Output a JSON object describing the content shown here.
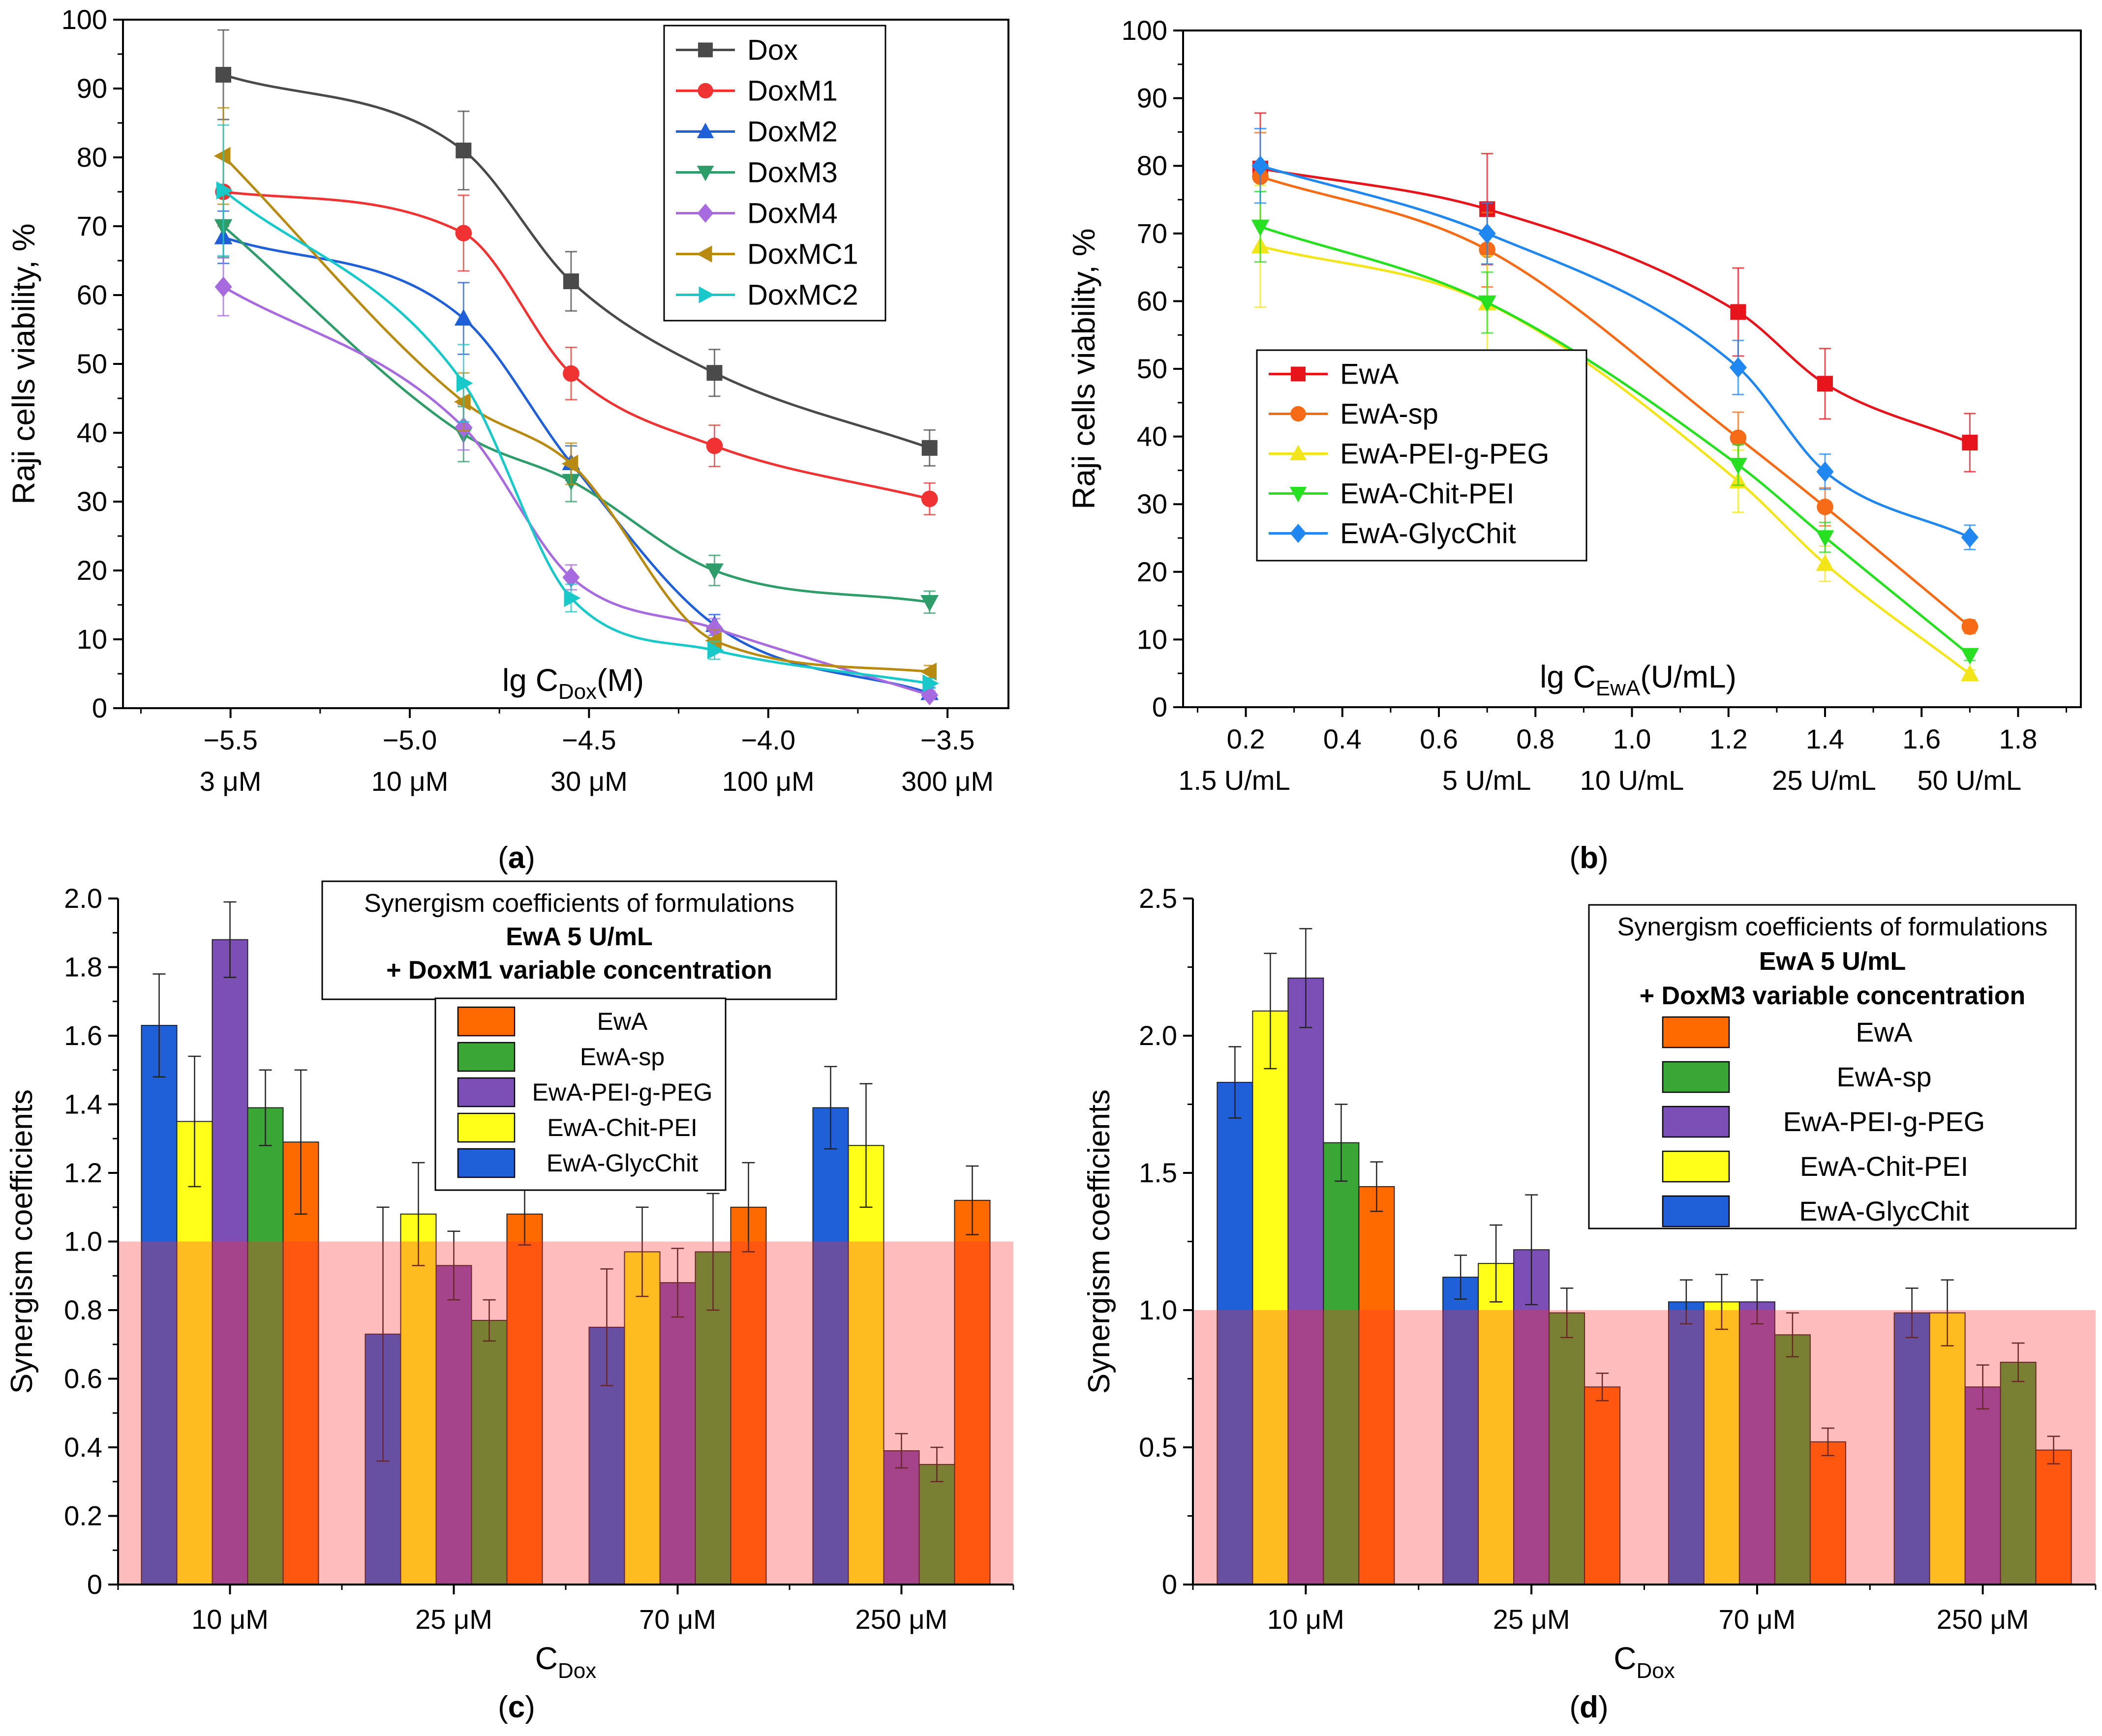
{
  "chart_data": [
    {
      "panel": "(a)",
      "type": "line",
      "ylabel": "Raji cells viability, %",
      "xlabel_main": "lg C",
      "xlabel_sub": "Dox",
      "xlabel_tail": "(M)",
      "xlim": [
        -5.8,
        -3.33
      ],
      "ylim": [
        0,
        100
      ],
      "xticks": [
        "-5.5",
        "-5.0",
        "-4.5",
        "-4.0",
        "-3.5"
      ],
      "xtick_values": [
        -5.5,
        -5.0,
        -4.5,
        -4.0,
        -3.5
      ],
      "yticks": [
        "0",
        "10",
        "20",
        "30",
        "40",
        "50",
        "60",
        "70",
        "80",
        "90",
        "100"
      ],
      "x_sublabels": [
        {
          "x": -5.5,
          "label": "3 μM"
        },
        {
          "x": -5.0,
          "label": "10 μM"
        },
        {
          "x": -4.5,
          "label": "30 μM"
        },
        {
          "x": -4.0,
          "label": "100 μM"
        },
        {
          "x": -3.5,
          "label": "300 μM"
        }
      ],
      "x": [
        -5.52,
        -4.85,
        -4.55,
        -4.15,
        -3.55
      ],
      "series": [
        {
          "name": "Dox",
          "color": "#4a4a4a",
          "marker": "square",
          "values": [
            92,
            81,
            62,
            48.7,
            37.8
          ],
          "err": [
            6.5,
            5.7,
            4.3,
            3.4,
            2.6
          ]
        },
        {
          "name": "DoxM1",
          "color": "#f03232",
          "marker": "circle",
          "values": [
            75,
            69,
            48.6,
            38.1,
            30.4
          ],
          "err": [
            5.0,
            5.5,
            3.8,
            3.0,
            2.3
          ]
        },
        {
          "name": "DoxM2",
          "color": "#1f5fd8",
          "marker": "triangle-up",
          "values": [
            68.4,
            56.6,
            35.6,
            12.1,
            2.2
          ],
          "err": [
            3.8,
            5.2,
            2.5,
            1.5,
            0.8
          ]
        },
        {
          "name": "DoxM3",
          "color": "#2e9d6a",
          "marker": "triangle-down",
          "values": [
            70,
            39.8,
            33,
            20,
            15.4
          ],
          "err": [
            4.5,
            4.0,
            3.0,
            2.2,
            1.6
          ]
        },
        {
          "name": "DoxM4",
          "color": "#a86bdf",
          "marker": "diamond",
          "values": [
            61.2,
            40.8,
            19,
            11.6,
            1.9
          ],
          "err": [
            4.2,
            3.3,
            1.8,
            1.4,
            0.6
          ]
        },
        {
          "name": "DoxMC1",
          "color": "#b88a10",
          "marker": "triangle-left",
          "values": [
            80.2,
            44.5,
            35.5,
            9.8,
            5.3
          ],
          "err": [
            7.0,
            4.2,
            3.0,
            1.6,
            0.9
          ]
        },
        {
          "name": "DoxMC2",
          "color": "#19c9c9",
          "marker": "triangle-right",
          "values": [
            75.2,
            47.2,
            16,
            8.4,
            3.6
          ],
          "err": [
            9.5,
            5.6,
            2.0,
            1.3,
            0.7
          ]
        }
      ]
    },
    {
      "panel": "(b)",
      "type": "line",
      "ylabel": "Raji cells viability, %",
      "xlabel_main": "lg C",
      "xlabel_sub": "EwA",
      "xlabel_tail": "(U/mL)",
      "xlim": [
        0.07,
        1.93
      ],
      "ylim": [
        0,
        100
      ],
      "xticks": [
        "0.2",
        "0.4",
        "0.6",
        "0.8",
        "1.0",
        "1.2",
        "1.4",
        "1.6",
        "1.8"
      ],
      "xtick_values": [
        0.2,
        0.4,
        0.6,
        0.8,
        1.0,
        1.2,
        1.4,
        1.6,
        1.8
      ],
      "yticks": [
        "0",
        "10",
        "20",
        "30",
        "40",
        "50",
        "60",
        "70",
        "80",
        "90",
        "100"
      ],
      "x_sublabels": [
        {
          "x": 0.176,
          "label": "1.5 U/mL"
        },
        {
          "x": 0.699,
          "label": "5 U/mL"
        },
        {
          "x": 1.0,
          "label": "10 U/mL"
        },
        {
          "x": 1.398,
          "label": "25 U/mL"
        },
        {
          "x": 1.699,
          "label": "50 U/mL"
        }
      ],
      "x": [
        0.23,
        0.7,
        1.22,
        1.4,
        1.7
      ],
      "series": [
        {
          "name": "EwA",
          "color": "#e8141b",
          "marker": "square",
          "values": [
            79.6,
            73.6,
            58.4,
            47.8,
            39.1
          ],
          "err": [
            8.2,
            8.2,
            6.5,
            5.2,
            4.3
          ]
        },
        {
          "name": "EwA-sp",
          "color": "#f76b16",
          "marker": "circle",
          "values": [
            78.4,
            67.6,
            39.8,
            29.6,
            11.9
          ],
          "err": [
            6.5,
            5.5,
            3.8,
            2.8,
            1.0
          ]
        },
        {
          "name": "EwA-PEI-g-PEG",
          "color": "#f2e51a",
          "marker": "triangle-up",
          "values": [
            68.1,
            59.7,
            33.4,
            21.2,
            4.9
          ],
          "err": [
            9.0,
            7.0,
            4.6,
            2.6,
            0.6
          ]
        },
        {
          "name": "EwA-Chit-PEI",
          "color": "#26e021",
          "marker": "triangle-down",
          "values": [
            71,
            59.8,
            35.8,
            25.1,
            7.7
          ],
          "err": [
            5.2,
            4.5,
            3.0,
            2.2,
            0.8
          ]
        },
        {
          "name": "EwA-GlycChit",
          "color": "#1f87ef",
          "marker": "diamond",
          "values": [
            80,
            70,
            50.2,
            34.8,
            25.1
          ],
          "err": [
            5.5,
            4.5,
            4.0,
            2.6,
            1.8
          ]
        }
      ]
    },
    {
      "panel": "(c)",
      "type": "bar",
      "title_lines": [
        "Synergism coefficients of formulations",
        "EwA 5 U/mL",
        "+ DoxM1 variable concentration"
      ],
      "ylabel": "Synergism coefficients",
      "xlabel_main": "C",
      "xlabel_sub": "Dox",
      "categories": [
        "10 μM",
        "25 μM",
        "70 μM",
        "250 μM"
      ],
      "ylim": [
        0,
        2.0
      ],
      "yticks": [
        "0",
        "0.2",
        "0.4",
        "0.6",
        "0.8",
        "1.0",
        "1.2",
        "1.4",
        "1.6",
        "1.8",
        "2.0"
      ],
      "threshold": 1.0,
      "series": [
        {
          "name": "EwA-GlycChit",
          "color": "#1f5fd8",
          "values": [
            1.63,
            0.73,
            0.75,
            1.39
          ],
          "err": [
            0.15,
            0.37,
            0.17,
            0.12
          ]
        },
        {
          "name": "EwA-Chit-PEI",
          "color": "#ffff1a",
          "values": [
            1.35,
            1.08,
            0.97,
            1.28
          ],
          "err": [
            0.19,
            0.15,
            0.13,
            0.18
          ]
        },
        {
          "name": "EwA-PEI-g-PEG",
          "color": "#7b4fb5",
          "values": [
            1.88,
            0.93,
            0.88,
            0.39
          ],
          "err": [
            0.11,
            0.1,
            0.1,
            0.05
          ]
        },
        {
          "name": "EwA-sp",
          "color": "#3aa635",
          "values": [
            1.39,
            0.77,
            0.97,
            0.35
          ],
          "err": [
            0.11,
            0.06,
            0.17,
            0.05
          ]
        },
        {
          "name": "EwA",
          "color": "#ff6a00",
          "values": [
            1.29,
            1.08,
            1.1,
            1.12
          ],
          "err": [
            0.21,
            0.09,
            0.13,
            0.1
          ]
        }
      ],
      "legend_order": [
        "EwA",
        "EwA-sp",
        "EwA-PEI-g-PEG",
        "EwA-Chit-PEI",
        "EwA-GlycChit"
      ]
    },
    {
      "panel": "(d)",
      "type": "bar",
      "title_lines": [
        "Synergism coefficients of formulations",
        "EwA 5 U/mL",
        "+ DoxM3 variable concentration"
      ],
      "ylabel": "Synergism coefficients",
      "xlabel_main": "C",
      "xlabel_sub": "Dox",
      "categories": [
        "10 μM",
        "25 μM",
        "70 μM",
        "250 μM"
      ],
      "ylim": [
        0,
        2.5
      ],
      "yticks": [
        "0",
        "0.5",
        "1.0",
        "1.5",
        "2.0",
        "2.5"
      ],
      "threshold": 1.0,
      "series": [
        {
          "name": "EwA-GlycChit",
          "color": "#1f5fd8",
          "values": [
            1.83,
            1.12,
            1.03,
            0.99
          ],
          "err": [
            0.13,
            0.08,
            0.08,
            0.09
          ]
        },
        {
          "name": "EwA-Chit-PEI",
          "color": "#ffff1a",
          "values": [
            2.09,
            1.17,
            1.03,
            0.99
          ],
          "err": [
            0.21,
            0.14,
            0.1,
            0.12
          ]
        },
        {
          "name": "EwA-PEI-g-PEG",
          "color": "#7b4fb5",
          "values": [
            2.21,
            1.22,
            1.03,
            0.72
          ],
          "err": [
            0.18,
            0.2,
            0.08,
            0.08
          ]
        },
        {
          "name": "EwA-sp",
          "color": "#3aa635",
          "values": [
            1.61,
            0.99,
            0.91,
            0.81
          ],
          "err": [
            0.14,
            0.09,
            0.08,
            0.07
          ]
        },
        {
          "name": "EwA",
          "color": "#ff6a00",
          "values": [
            1.45,
            0.72,
            0.52,
            0.49
          ],
          "err": [
            0.09,
            0.05,
            0.05,
            0.05
          ]
        }
      ],
      "legend_order": [
        "EwA",
        "EwA-sp",
        "EwA-PEI-g-PEG",
        "EwA-Chit-PEI",
        "EwA-GlycChit"
      ]
    }
  ],
  "panel_labels": {
    "a": "(a)",
    "b": "(b)",
    "c": "(c)",
    "d": "(d)"
  }
}
